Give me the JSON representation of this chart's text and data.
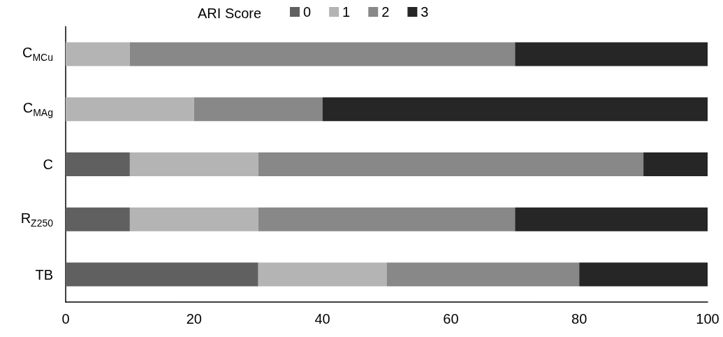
{
  "chart_data": {
    "type": "bar",
    "orientation": "horizontal",
    "stacked": true,
    "legend_title": "ARI Score",
    "legend": "top",
    "categories": [
      "C$_{MCu}$",
      "C$_{MAg}$",
      "C",
      "R$_{Z250}$",
      "TB"
    ],
    "series": [
      {
        "name": "0",
        "color": "#606060",
        "values": [
          0,
          0,
          10,
          10,
          30
        ]
      },
      {
        "name": "1",
        "color": "#b4b4b4",
        "values": [
          10,
          20,
          20,
          20,
          20
        ]
      },
      {
        "name": "2",
        "color": "#888888",
        "values": [
          60,
          20,
          60,
          40,
          30
        ]
      },
      {
        "name": "3",
        "color": "#262626",
        "values": [
          30,
          60,
          10,
          30,
          20
        ]
      }
    ],
    "xlim": [
      0,
      100
    ],
    "xticks": [
      0,
      20,
      40,
      60,
      80,
      100
    ],
    "grid": false
  }
}
